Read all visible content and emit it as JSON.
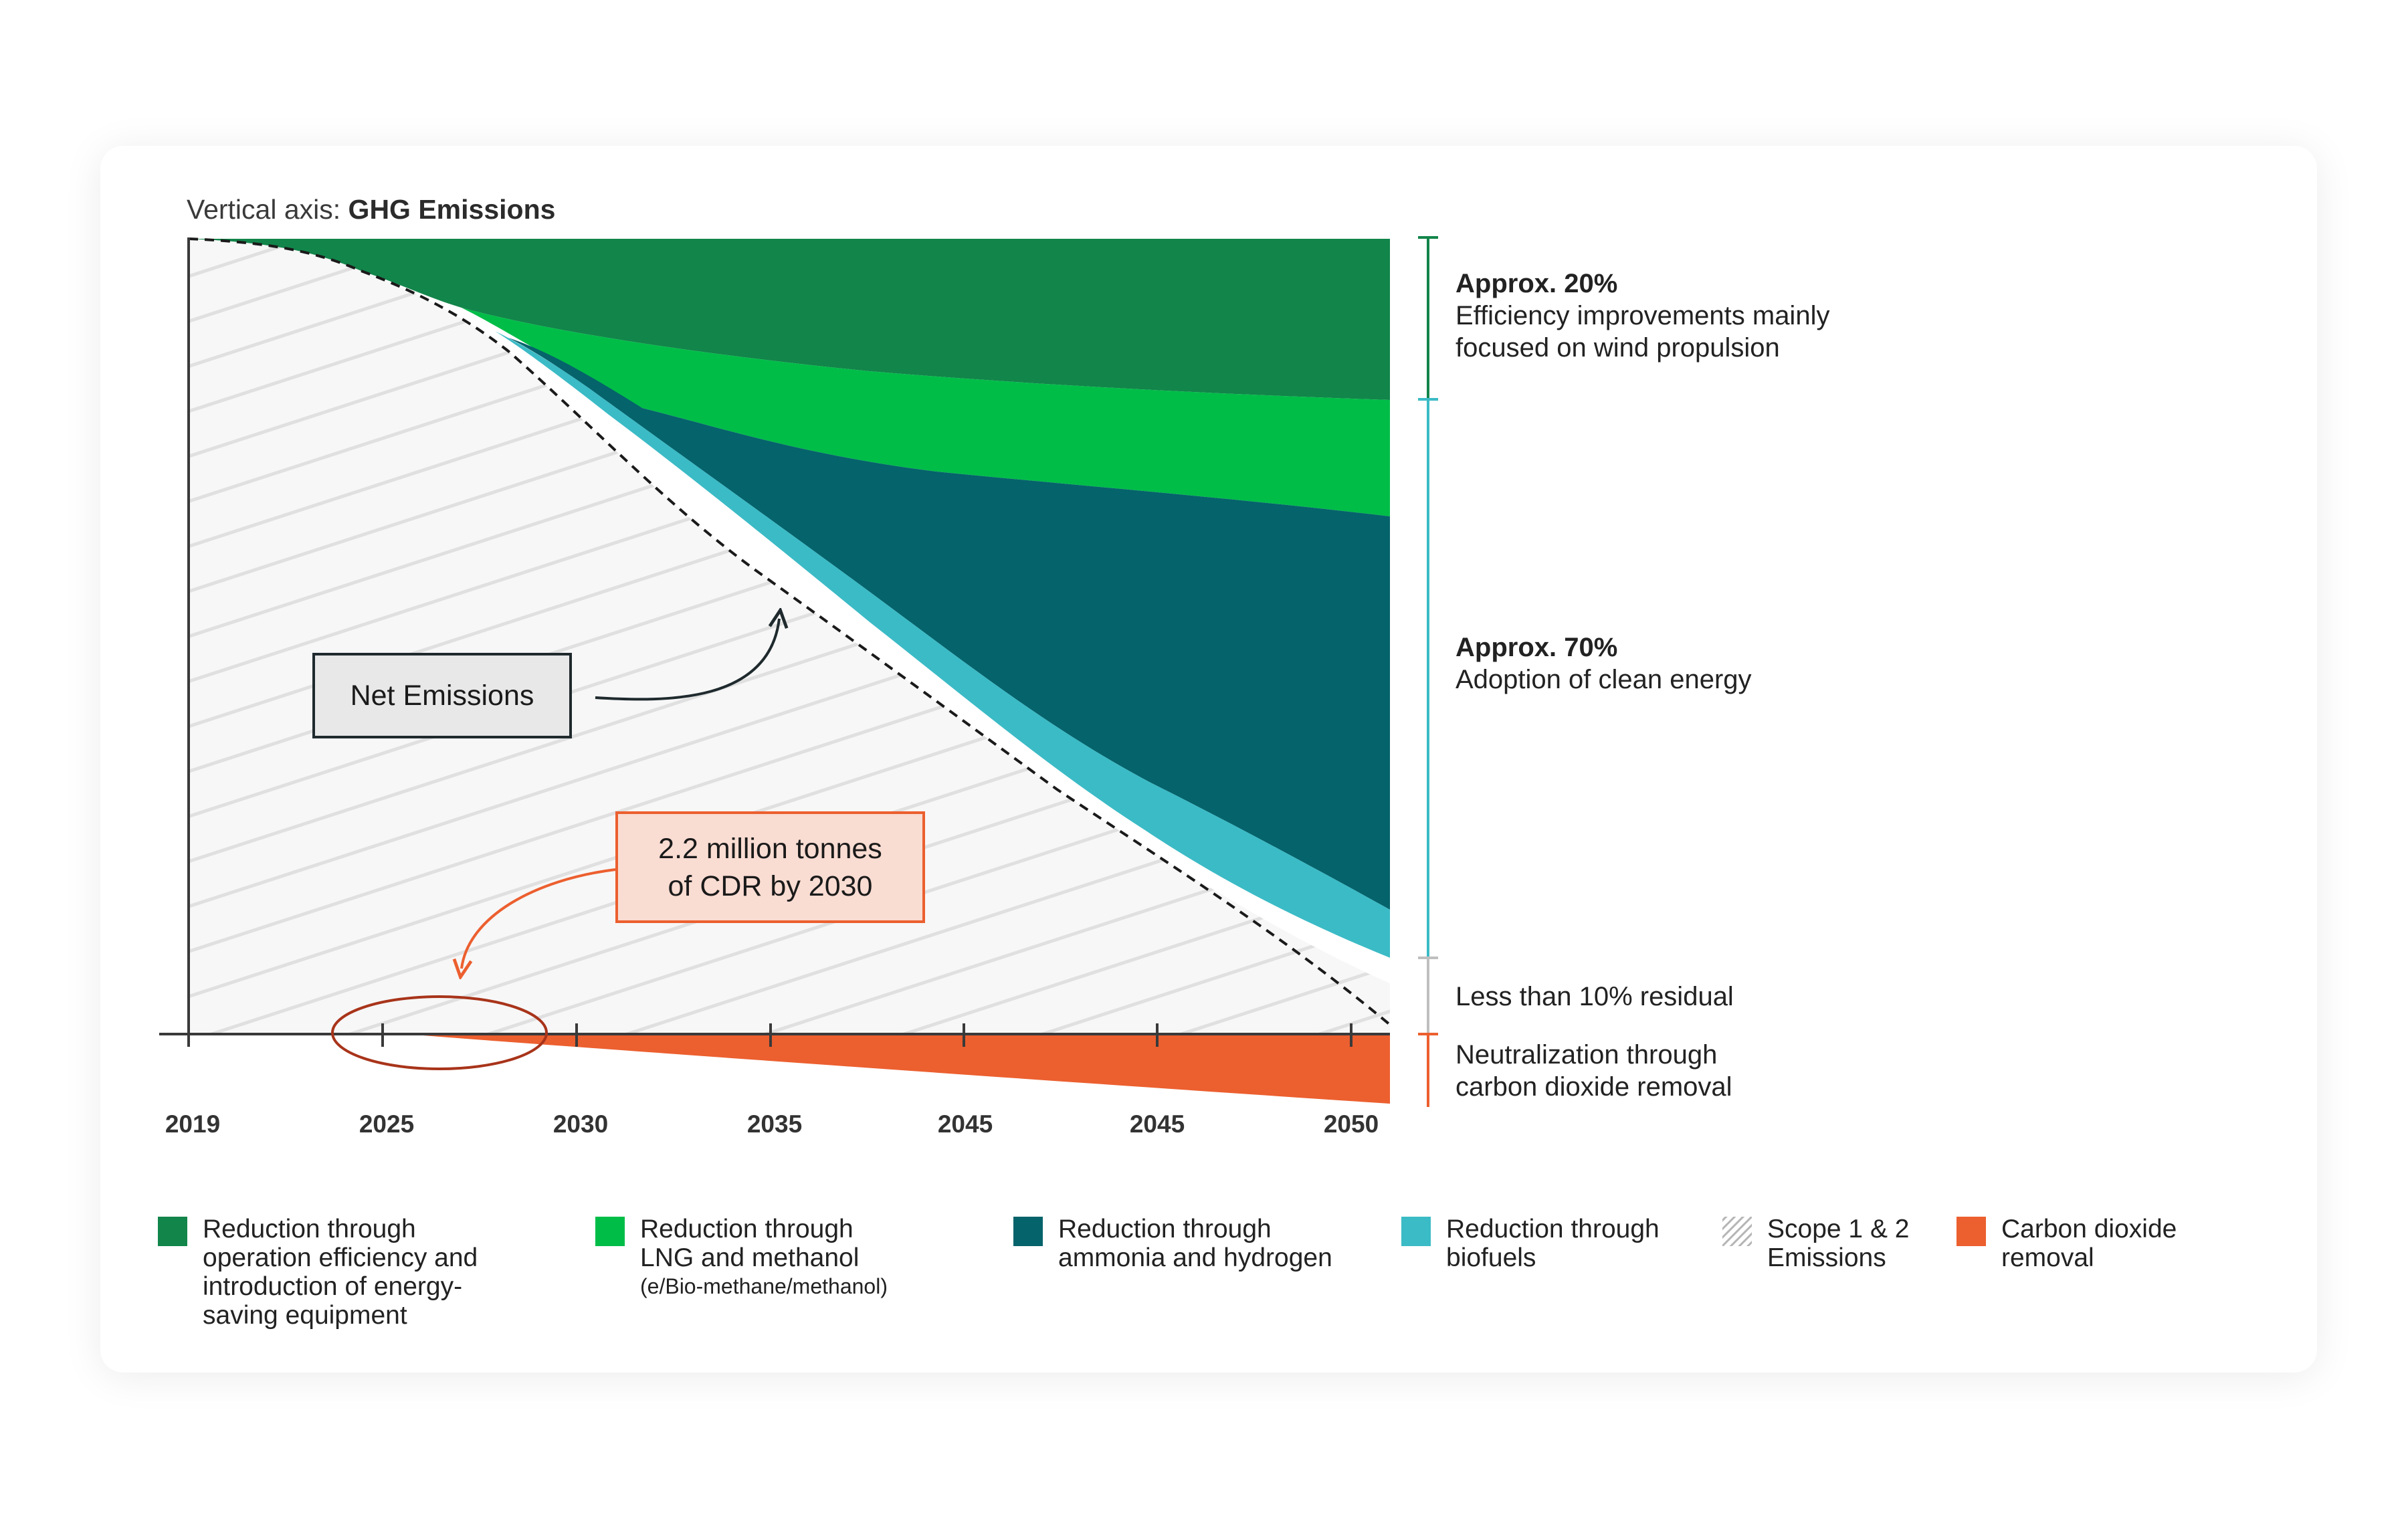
{
  "chart_data": {
    "type": "area",
    "vertical_axis_prefix": "Vertical axis: ",
    "vertical_axis_title": "GHG Emissions",
    "x_tick_labels": [
      "2019",
      "2025",
      "2030",
      "2035",
      "2045",
      "2045",
      "2050"
    ],
    "colors": {
      "efficiency": "#12854a",
      "lng_methanol": "#00bd48",
      "ammonia_hydrogen": "#05636b",
      "biofuels": "#3bbbc6",
      "cdr": "#ec5f2f",
      "bracket_top": "#12854a",
      "bracket_mid": "#3bbbc6",
      "bracket_residual": "#bfbfbf"
    },
    "series": [
      {
        "name": "Reduction through operation efficiency and introduction of energy-saving equipment",
        "share_text": "Approx. 20%"
      },
      {
        "name": "Reduction through LNG and methanol (e/Bio-methane/methanol)"
      },
      {
        "name": "Reduction through ammonia and hydrogen"
      },
      {
        "name": "Reduction through biofuels"
      },
      {
        "name": "Scope 1 & 2 Emissions"
      },
      {
        "name": "Carbon dioxide removal"
      }
    ]
  },
  "annotations": {
    "top": {
      "head": "Approx. 20%",
      "line1": "Efficiency improvements mainly",
      "line2": "focused on wind propulsion"
    },
    "middle": {
      "head": "Approx. 70%",
      "line1": "Adoption of clean energy"
    },
    "residual": {
      "line1": "Less than 10% residual"
    },
    "neutral": {
      "line1": "Neutralization through",
      "line2": "carbon dioxide removal"
    }
  },
  "callouts": {
    "net": "Net Emissions",
    "cdr_line1": "2.2 million tonnes",
    "cdr_line2": "of CDR by 2030"
  },
  "legend": [
    {
      "lines": [
        "Reduction through",
        "operation efficiency and",
        "introduction of energy-",
        "saving equipment"
      ],
      "color": "#12854a"
    },
    {
      "lines": [
        "Reduction through",
        "LNG and methanol"
      ],
      "sub": "(e/Bio-methane/methanol)",
      "color": "#00bd48"
    },
    {
      "lines": [
        "Reduction through",
        "ammonia and hydrogen"
      ],
      "color": "#05636b"
    },
    {
      "lines": [
        "Reduction through",
        "biofuels"
      ],
      "color": "#3bbbc6"
    },
    {
      "lines": [
        "Scope 1 & 2",
        "Emissions"
      ],
      "color": "hatched",
      "swatch": "hatch"
    },
    {
      "lines": [
        "Carbon dioxide",
        "removal"
      ],
      "color": "#ec5f2f"
    }
  ]
}
